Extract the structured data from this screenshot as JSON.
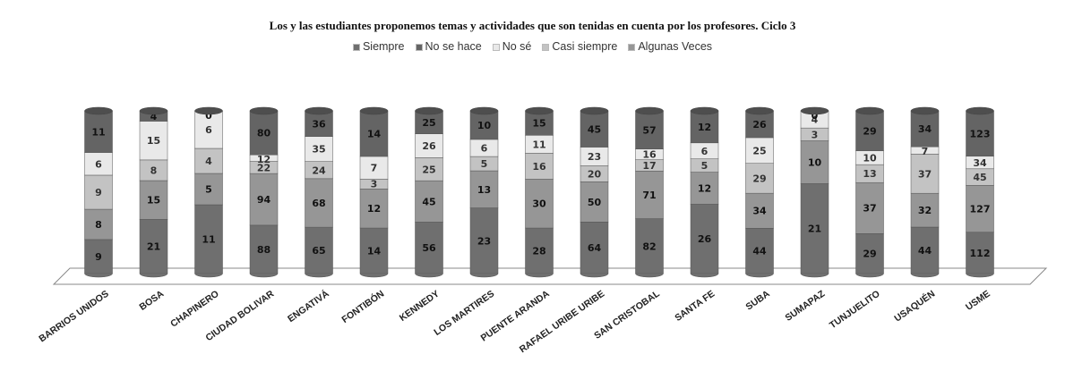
{
  "chart_data": {
    "type": "bar",
    "stacked": true,
    "normalized": true,
    "style": "3d-cylinder",
    "title": "Los y las estudiantes proponemos temas y actividades que son tenidas en cuenta por los profesores. Ciclo 3",
    "legend_position": "top",
    "categories": [
      "BARRIOS UNIDOS",
      "BOSA",
      "CHAPINERO",
      "CIUDAD BOLIVAR",
      "ENGATIVÁ",
      "FONTIBÓN",
      "KENNEDY",
      "LOS MARTIRES",
      "PUENTE ARANDA",
      "RAFAEL URIBE URIBE",
      "SAN CRISTOBAL",
      "SANTA FE",
      "SUBA",
      "SUMAPAZ",
      "TUNJUELITO",
      "USAQUÉN",
      "USME"
    ],
    "series": [
      {
        "name": "Siempre",
        "color": "#6f6f6f",
        "values": [
          9,
          21,
          11,
          88,
          65,
          14,
          56,
          23,
          28,
          64,
          82,
          26,
          44,
          21,
          29,
          44,
          112
        ]
      },
      {
        "name": "Algunas Veces",
        "color": "#969696",
        "values": [
          8,
          15,
          5,
          94,
          68,
          12,
          45,
          13,
          30,
          50,
          71,
          12,
          34,
          10,
          37,
          32,
          127
        ]
      },
      {
        "name": "Casi siempre",
        "color": "#c3c3c3",
        "values": [
          9,
          8,
          4,
          22,
          24,
          3,
          25,
          5,
          16,
          20,
          17,
          5,
          29,
          3,
          13,
          37,
          45
        ]
      },
      {
        "name": "No sé",
        "color": "#e9e9e9",
        "values": [
          6,
          15,
          6,
          12,
          35,
          7,
          26,
          6,
          11,
          23,
          16,
          6,
          25,
          4,
          10,
          7,
          34
        ]
      },
      {
        "name": "No se hace",
        "color": "#646464",
        "values": [
          11,
          4,
          0,
          80,
          36,
          14,
          25,
          10,
          15,
          45,
          57,
          12,
          26,
          0,
          29,
          34,
          123
        ]
      }
    ],
    "legend_order": [
      "Siempre",
      "No se hace",
      "No sé",
      "Casi siempre",
      "Algunas Veces"
    ]
  }
}
